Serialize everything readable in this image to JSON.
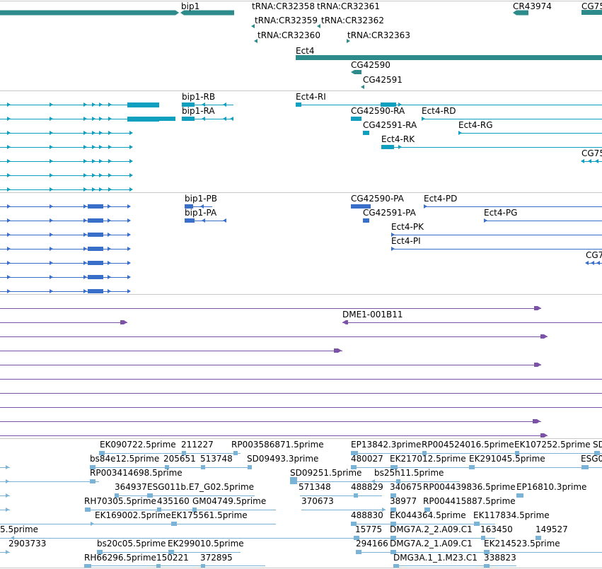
{
  "colors": {
    "gene": "#2e8b8b",
    "rna": "#0f9fbf",
    "protein": "#3a6fc9",
    "transcript": "#7b53a6",
    "est": "#7ab3d6",
    "separator": "#c8c8c8"
  },
  "tracks": {
    "genes": {
      "labels": [
        "bip1",
        "tRNA:CR32358",
        "tRNA:CR32361",
        "CR43974",
        "CG75",
        "tRNA:CR32359",
        "tRNA:CR32362",
        "tRNA:CR32360",
        "tRNA:CR32363",
        "Ect4",
        "CG42590",
        "CG42591"
      ]
    },
    "rna": {
      "labels": [
        "bip1-RB",
        "Ect4-RI",
        "bip1-RA",
        "CG42590-RA",
        "Ect4-RD",
        "CG42591-RA",
        "Ect4-RG",
        "Ect4-RK",
        "CG75"
      ]
    },
    "protein": {
      "labels": [
        "bip1-PB",
        "CG42590-PA",
        "Ect4-PD",
        "bip1-PA",
        "CG42591-PA",
        "Ect4-PG",
        "Ect4-PK",
        "Ect4-PI",
        "CG7"
      ]
    },
    "transcripts": {
      "labels": [
        "DME1-001B11"
      ]
    },
    "est": {
      "labels": [
        "EK090722.5prime",
        "211227",
        "RP003586871.5prime",
        "EP13842.3prime",
        "RP004524016.5prime",
        "EK107252.5prime",
        "SD",
        "bs84e12.5prime",
        "205651",
        "513748",
        "SD09493.3prime",
        "480027",
        "EK217012.5prime",
        "EK291045.5prime",
        "ESG0",
        "RP003414698.5prime",
        "SD09251.5prime",
        "bs25h11.5prime",
        "364937",
        "ESG011b.E7_G02.5prime",
        "571348",
        "488829",
        "340675",
        "RP004439836.5prime",
        "EP16810.3prime",
        "RH70305.5prime",
        "435160",
        "GM04749.5prime",
        "370673",
        "38977",
        "RP004415887.5prime",
        "EK169002.5prime",
        "EK175561.5prime",
        "488830",
        "EK044364.5prime",
        "EK117834.5prime",
        "5.5prime",
        "15775",
        "DMG7A.2_2.A09.C1",
        "163450",
        "149527",
        "2903733",
        "bs20c05.5prime",
        "EK299010.5prime",
        "294166",
        "DMG7A.2_1.A09.C1",
        "EK214523.5prime",
        "RH66296.5prime",
        "150221",
        "372895",
        "DMG3A.1_1.M23.C1",
        "338823"
      ]
    }
  }
}
